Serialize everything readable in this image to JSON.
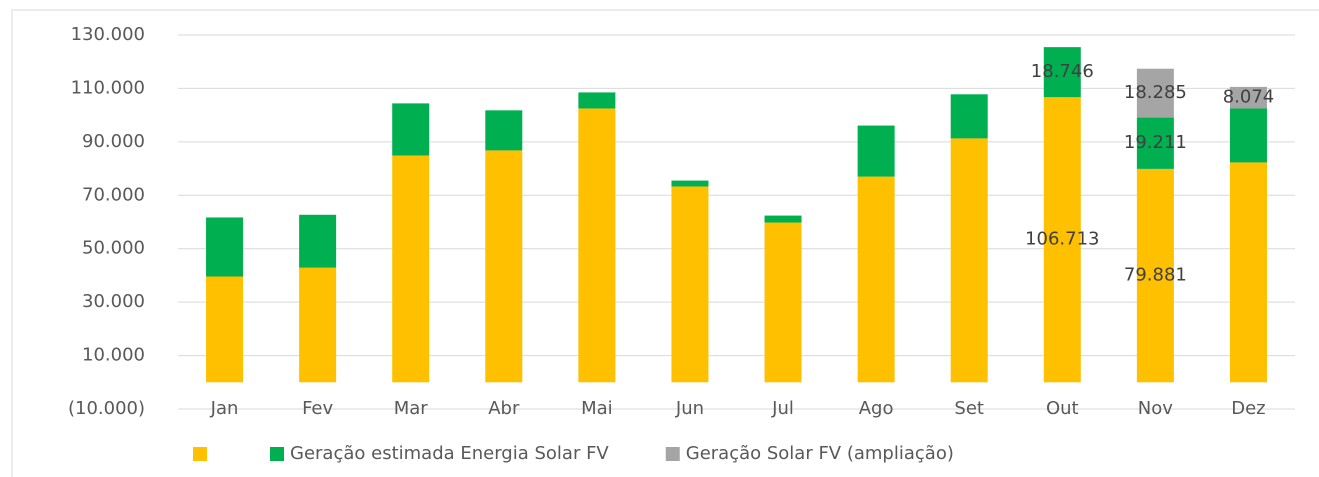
{
  "chart_data": {
    "type": "stacked_bar",
    "categories": [
      "Jan",
      "Fev",
      "Mar",
      "Abr",
      "Mai",
      "Jun",
      "Jul",
      "Ago",
      "Set",
      "Out",
      "Nov",
      "Dez"
    ],
    "series": [
      {
        "color": "#ffc000",
        "values": [
          39600,
          42900,
          84900,
          86800,
          102500,
          73300,
          59800,
          77000,
          91300,
          106713,
          79881,
          82300
        ],
        "value_labels": [
          null,
          null,
          null,
          null,
          null,
          null,
          null,
          null,
          null,
          "106.713",
          "79.881",
          null
        ]
      },
      {
        "name": "Geração estimada Energia Solar FV",
        "color": "#00b050",
        "values": [
          22100,
          19800,
          19500,
          15000,
          6000,
          2200,
          2600,
          19100,
          16500,
          18746,
          19211,
          20200
        ],
        "value_labels": [
          null,
          null,
          null,
          null,
          null,
          null,
          null,
          null,
          null,
          "18.746",
          "19.211",
          null
        ]
      },
      {
        "name": "Geração Solar FV (ampliação)",
        "color": "#a5a5a5",
        "values": [
          0,
          0,
          0,
          0,
          0,
          0,
          0,
          0,
          0,
          0,
          18285,
          8074
        ],
        "value_labels": [
          null,
          null,
          null,
          null,
          null,
          null,
          null,
          null,
          null,
          null,
          "18.285",
          "8.074"
        ]
      }
    ],
    "ylim": [
      -10000,
      130000
    ],
    "yticks": [
      {
        "value": -10000,
        "label": "(10.000)"
      },
      {
        "value": 10000,
        "label": "10.000"
      },
      {
        "value": 30000,
        "label": "30.000"
      },
      {
        "value": 50000,
        "label": "50.000"
      },
      {
        "value": 70000,
        "label": "70.000"
      },
      {
        "value": 90000,
        "label": "90.000"
      },
      {
        "value": 110000,
        "label": "110.000"
      },
      {
        "value": 130000,
        "label": "130.000"
      }
    ],
    "grid": true,
    "legend": "bottom"
  }
}
